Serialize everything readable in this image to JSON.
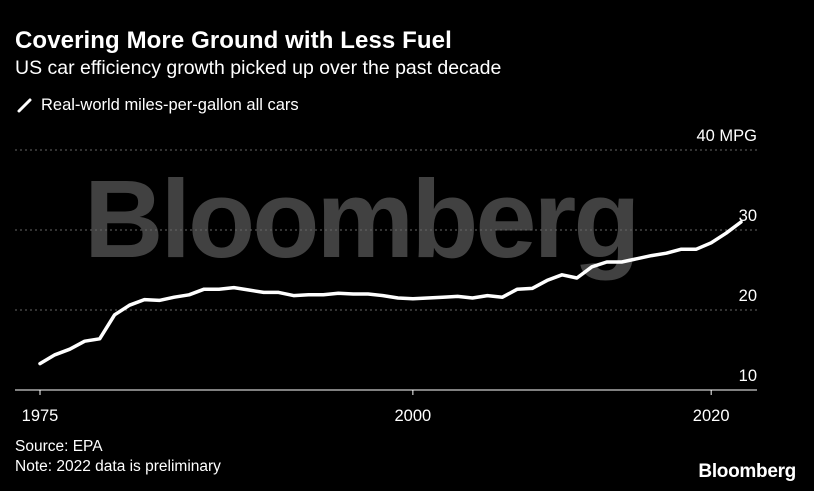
{
  "header": {
    "title": "Covering More Ground with Less Fuel",
    "subtitle": "US car efficiency growth picked up over the past decade"
  },
  "legend": {
    "label": "Real-world miles-per-gallon all cars"
  },
  "watermark": "Bloomberg",
  "footer": {
    "source": "Source: EPA",
    "note": "Note: 2022 data is preliminary",
    "brand": "Bloomberg"
  },
  "colors": {
    "background": "#000000",
    "line": "#ffffff",
    "grid": "#666666",
    "text": "#ffffff",
    "watermark": "#5a5a5a"
  },
  "chart_data": {
    "type": "line",
    "title": "Covering More Ground with Less Fuel",
    "subtitle": "US car efficiency growth picked up over the past decade",
    "xlim": [
      1975,
      2022
    ],
    "ylim": [
      10,
      40
    ],
    "x_ticks": [
      1975,
      2000,
      2020
    ],
    "y_ticks": [
      10,
      20,
      30,
      40
    ],
    "y_tick_labels": [
      "10",
      "20",
      "30",
      "40 MPG"
    ],
    "grid": true,
    "legend_position": "top-left",
    "series": [
      {
        "name": "Real-world miles-per-gallon all cars",
        "color": "#ffffff",
        "x": [
          1975,
          1976,
          1977,
          1978,
          1979,
          1980,
          1981,
          1982,
          1983,
          1984,
          1985,
          1986,
          1987,
          1988,
          1989,
          1990,
          1991,
          1992,
          1993,
          1994,
          1995,
          1996,
          1997,
          1998,
          1999,
          2000,
          2001,
          2002,
          2003,
          2004,
          2005,
          2006,
          2007,
          2008,
          2009,
          2010,
          2011,
          2012,
          2013,
          2014,
          2015,
          2016,
          2017,
          2018,
          2019,
          2020,
          2021,
          2022
        ],
        "y": [
          13.3,
          14.4,
          15.1,
          16.1,
          16.4,
          19.4,
          20.6,
          21.3,
          21.2,
          21.6,
          21.9,
          22.6,
          22.6,
          22.8,
          22.5,
          22.2,
          22.2,
          21.8,
          21.9,
          21.9,
          22.1,
          22.0,
          22.0,
          21.8,
          21.5,
          21.4,
          21.5,
          21.6,
          21.7,
          21.5,
          21.8,
          21.6,
          22.6,
          22.7,
          23.7,
          24.4,
          24.0,
          25.4,
          26.0,
          26.0,
          26.4,
          26.8,
          27.1,
          27.6,
          27.6,
          28.4,
          29.6,
          31.0
        ]
      }
    ]
  }
}
